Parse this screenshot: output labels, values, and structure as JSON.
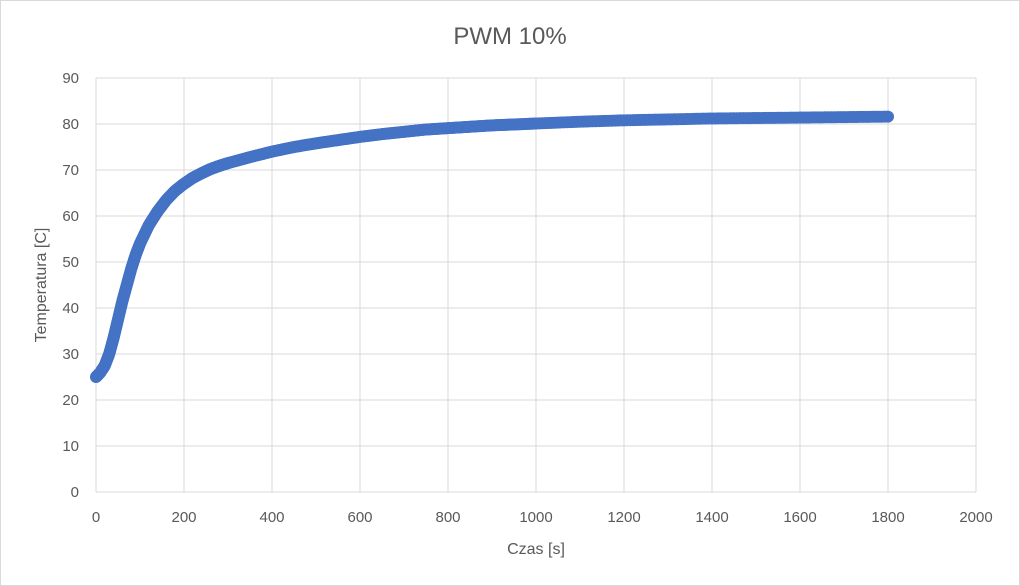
{
  "chart_data": {
    "type": "scatter",
    "title": "PWM 10%",
    "xlabel": "Czas [s]",
    "ylabel": "Temperatura [C]",
    "xlim": [
      0,
      2000
    ],
    "ylim": [
      0,
      90
    ],
    "xticks": [
      0,
      200,
      400,
      600,
      800,
      1000,
      1200,
      1400,
      1600,
      1800,
      2000
    ],
    "yticks": [
      0,
      10,
      20,
      30,
      40,
      50,
      60,
      70,
      80,
      90
    ],
    "grid": true,
    "series_color": "#4472c4",
    "series": [
      {
        "x": [
          0,
          10,
          20,
          30,
          40,
          50,
          60,
          70,
          80,
          90,
          100,
          120,
          140,
          160,
          180,
          200,
          220,
          240,
          260,
          280,
          300,
          350,
          400,
          450,
          500,
          550,
          600,
          650,
          700,
          750,
          800,
          850,
          900,
          950,
          1000,
          1100,
          1200,
          1300,
          1400,
          1500,
          1600,
          1700,
          1800
        ],
        "y": [
          25,
          26,
          27.5,
          30,
          33.5,
          37.5,
          41.5,
          45,
          48.5,
          51.5,
          54,
          58,
          61,
          63.5,
          65.5,
          67,
          68.3,
          69.3,
          70.2,
          70.9,
          71.5,
          72.8,
          74,
          75,
          75.8,
          76.5,
          77.2,
          77.8,
          78.3,
          78.8,
          79.1,
          79.4,
          79.7,
          79.9,
          80.1,
          80.5,
          80.8,
          81,
          81.2,
          81.3,
          81.4,
          81.5,
          81.6
        ]
      }
    ]
  }
}
